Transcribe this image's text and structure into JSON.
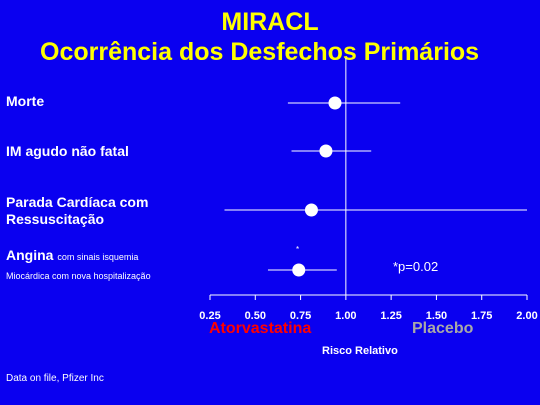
{
  "slide": {
    "title_line1": "MIRACL",
    "title_line2": "Ocorrência dos Desfechos Primários",
    "source": "Data on file, Pfizer Inc",
    "annotation": "*p=0.02",
    "annotation_mark": "*",
    "left_label": "Atorvastatina",
    "right_label": "Placebo"
  },
  "rows": [
    {
      "label": "Morte",
      "sub": "",
      "note": ""
    },
    {
      "label": "IM agudo não fatal",
      "sub": "",
      "note": ""
    },
    {
      "label": "Parada Cardíaca com Ressuscitação",
      "label_line1": "Parada Cardíaca com",
      "label_line2": "Ressuscitação",
      "sub": "",
      "note": ""
    },
    {
      "label": "Angina",
      "note": "com sinais isquemia",
      "sub": "Miocárdica com nova hospitalização"
    }
  ],
  "chart_data": {
    "type": "forest",
    "xlabel": "Risco Relativo",
    "xlim": [
      0.25,
      2.0
    ],
    "xticks": [
      0.25,
      0.5,
      0.75,
      1.0,
      1.25,
      1.5,
      1.75,
      2.0
    ],
    "xtick_labels": [
      "0.25",
      "0.50",
      "0.75",
      "1.00",
      "1.25",
      "1.50",
      "1.75",
      "2.00"
    ],
    "reference_line": 1.0,
    "series": [
      {
        "category": "Morte",
        "estimate": 0.94,
        "lower": 0.68,
        "upper": 1.3
      },
      {
        "category": "IM agudo não fatal",
        "estimate": 0.89,
        "lower": 0.7,
        "upper": 1.14
      },
      {
        "category": "Parada Cardíaca com Ressuscitação",
        "estimate": 0.81,
        "lower": 0.33,
        "upper": 2.0
      },
      {
        "category": "Angina com sinais isquemia Miocárdica com nova hospitalização",
        "estimate": 0.74,
        "lower": 0.57,
        "upper": 0.95,
        "significant": true
      }
    ],
    "colors": {
      "background": "#0a00f0",
      "axis": "#ffffff",
      "marker": "#ffffff",
      "title": "#ffff00",
      "left_label": "#ff0000",
      "right_label": "#a8a8a8"
    }
  }
}
